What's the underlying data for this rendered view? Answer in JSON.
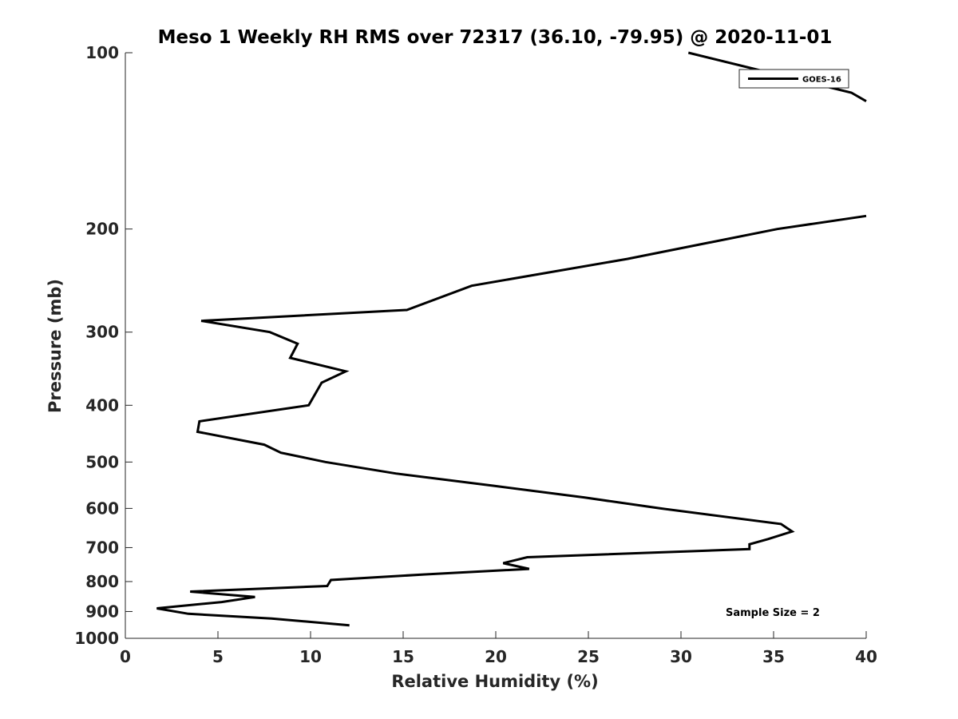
{
  "chart_data": {
    "type": "line",
    "title": "Meso 1 Weekly RH RMS over 72317 (36.10, -79.95) @ 2020-11-01",
    "xlabel": "Relative Humidity (%)",
    "ylabel": "Pressure (mb)",
    "xlim": [
      0,
      40
    ],
    "ylim": [
      100,
      1000
    ],
    "y_scale": "log",
    "y_reversed": true,
    "x_ticks": [
      "0",
      "5",
      "10",
      "15",
      "20",
      "25",
      "30",
      "35",
      "40"
    ],
    "y_ticks": [
      "100",
      "200",
      "300",
      "400",
      "500",
      "600",
      "700",
      "800",
      "900",
      "1000"
    ],
    "grid": false,
    "legend": {
      "placement": "top-right",
      "entries": [
        "GOES-16"
      ]
    },
    "annotation": "Sample Size = 2",
    "line_color": "#000000",
    "series": [
      {
        "name": "GOES-16",
        "segments": [
          [
            [
              30.4,
              100
            ],
            [
              39.2,
              117
            ],
            [
              40.0,
              121
            ]
          ],
          [
            [
              40.0,
              190
            ],
            [
              35.2,
              200
            ],
            [
              27.1,
              225
            ],
            [
              18.7,
              250
            ],
            [
              15.2,
              275
            ],
            [
              4.1,
              287
            ],
            [
              7.8,
              300
            ],
            [
              9.3,
              314
            ],
            [
              8.9,
              332
            ],
            [
              11.9,
              350
            ],
            [
              10.6,
              366
            ],
            [
              9.9,
              400
            ],
            [
              4.0,
              426
            ],
            [
              3.9,
              444
            ],
            [
              7.5,
              467
            ],
            [
              8.4,
              482
            ],
            [
              10.8,
              500
            ],
            [
              14.6,
              523
            ],
            [
              19.9,
              549
            ],
            [
              24.8,
              575
            ],
            [
              28.9,
              600
            ],
            [
              35.4,
              638
            ],
            [
              36.0,
              657
            ],
            [
              34.7,
              677
            ],
            [
              33.7,
              691
            ],
            [
              33.7,
              704
            ],
            [
              21.7,
              727
            ],
            [
              20.4,
              744
            ],
            [
              21.8,
              761
            ],
            [
              16.1,
              778
            ],
            [
              11.1,
              795
            ],
            [
              10.9,
              814
            ],
            [
              3.5,
              832
            ],
            [
              7.0,
              850
            ],
            [
              5.2,
              867
            ],
            [
              1.7,
              889
            ],
            [
              3.4,
              908
            ],
            [
              7.9,
              925
            ],
            [
              12.1,
              950
            ]
          ]
        ]
      }
    ]
  }
}
